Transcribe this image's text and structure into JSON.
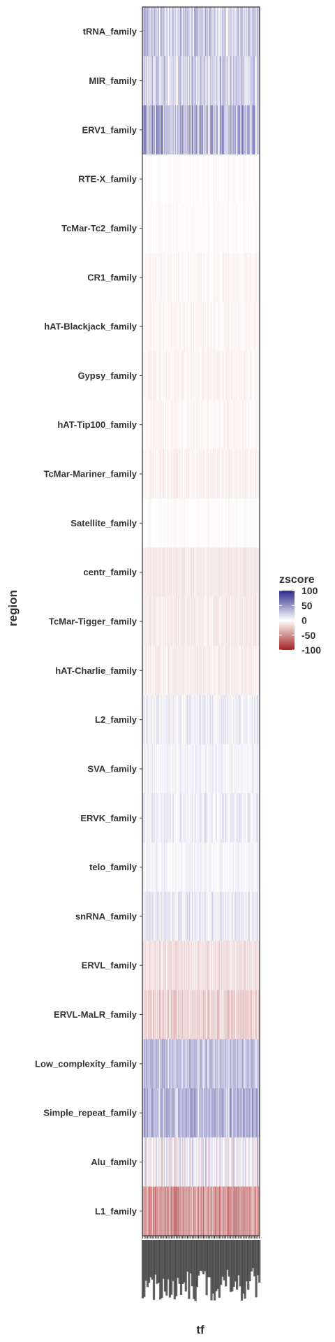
{
  "chart_data": {
    "type": "heatmap",
    "xlabel": "tf",
    "ylabel": "region",
    "legend": {
      "title": "zscore",
      "position": "right",
      "ticks": [
        100,
        50,
        0,
        -50,
        -100
      ],
      "tick_labels": [
        "100",
        "50",
        "0",
        "-50",
        "-100"
      ],
      "colors": {
        "high": "#2b2b8c",
        "mid": "#ffffff",
        "low": "#a32222"
      },
      "limits": [
        -100,
        100
      ]
    },
    "grid": false,
    "x_tick_labels_legible": false,
    "n_tf_columns": 220,
    "rows": [
      {
        "label": "tRNA_family",
        "mean_z": 22,
        "spread": 26
      },
      {
        "label": "MIR_family",
        "mean_z": 18,
        "spread": 28
      },
      {
        "label": "ERV1_family",
        "mean_z": 35,
        "spread": 38
      },
      {
        "label": "RTE-X_family",
        "mean_z": -2,
        "spread": 3
      },
      {
        "label": "TcMar-Tc2_family",
        "mean_z": -2,
        "spread": 3
      },
      {
        "label": "CR1_family",
        "mean_z": -4,
        "spread": 5
      },
      {
        "label": "hAT-Blackjack_family",
        "mean_z": -4,
        "spread": 4
      },
      {
        "label": "Gypsy_family",
        "mean_z": -5,
        "spread": 5
      },
      {
        "label": "hAT-Tip100_family",
        "mean_z": -4,
        "spread": 5
      },
      {
        "label": "TcMar-Mariner_family",
        "mean_z": -6,
        "spread": 6
      },
      {
        "label": "Satellite_family",
        "mean_z": -2,
        "spread": 3
      },
      {
        "label": "centr_family",
        "mean_z": -10,
        "spread": 5
      },
      {
        "label": "TcMar-Tigger_family",
        "mean_z": -9,
        "spread": 7
      },
      {
        "label": "hAT-Charlie_family",
        "mean_z": -8,
        "spread": 7
      },
      {
        "label": "L2_family",
        "mean_z": 6,
        "spread": 14
      },
      {
        "label": "SVA_family",
        "mean_z": 5,
        "spread": 9
      },
      {
        "label": "ERVK_family",
        "mean_z": 8,
        "spread": 12
      },
      {
        "label": "telo_family",
        "mean_z": 4,
        "spread": 8
      },
      {
        "label": "snRNA_family",
        "mean_z": 10,
        "spread": 15
      },
      {
        "label": "ERVL_family",
        "mean_z": -14,
        "spread": 10
      },
      {
        "label": "ERVL-MaLR_family",
        "mean_z": -20,
        "spread": 14
      },
      {
        "label": "Low_complexity_family",
        "mean_z": 28,
        "spread": 22
      },
      {
        "label": "Simple_repeat_family",
        "mean_z": 34,
        "spread": 26
      },
      {
        "label": "Alu_family",
        "mean_z": 4,
        "spread": 28
      },
      {
        "label": "L1_family",
        "mean_z": -45,
        "spread": 25
      }
    ]
  }
}
